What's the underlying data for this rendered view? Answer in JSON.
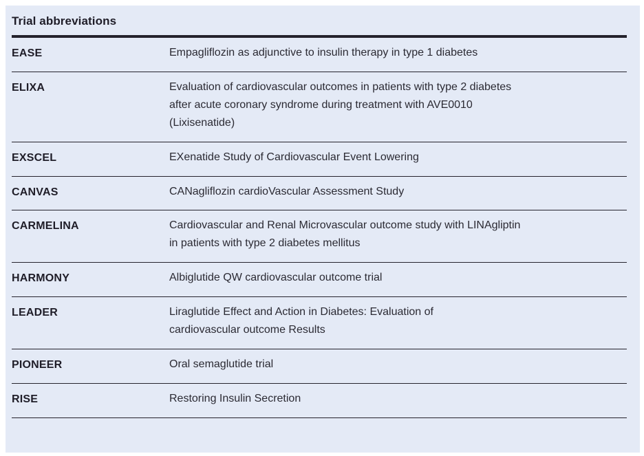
{
  "table": {
    "title": "Trial abbreviations",
    "rows": [
      {
        "term": "EASE",
        "definition": "Empagliflozin as adjunctive to insulin therapy in type 1 diabetes"
      },
      {
        "term": "ELIXA",
        "definition": "Evaluation of cardiovascular outcomes in patients with type 2 diabetes\nafter acute coronary syndrome during treatment with AVE0010\n(Lixisenatide)"
      },
      {
        "term": "EXSCEL",
        "definition": "EXenatide Study of Cardiovascular Event Lowering"
      },
      {
        "term": "CANVAS",
        "definition": "CANagliflozin cardioVascular Assessment Study"
      },
      {
        "term": "CARMELINA",
        "definition": "Cardiovascular and Renal Microvascular outcome study with LINAgliptin\nin patients with type 2 diabetes mellitus"
      },
      {
        "term": "HARMONY",
        "definition": "Albiglutide QW cardiovascular outcome trial"
      },
      {
        "term": "LEADER",
        "definition": "Liraglutide Effect and Action in Diabetes: Evaluation of\ncardiovascular outcome Results"
      },
      {
        "term": "PIONEER",
        "definition": "Oral semaglutide trial"
      },
      {
        "term": "RISE",
        "definition": "Restoring Insulin Secretion"
      }
    ],
    "colors": {
      "panel_background": "#e4eaf6",
      "rule": "#24222c",
      "text": "#2b2a33"
    }
  }
}
